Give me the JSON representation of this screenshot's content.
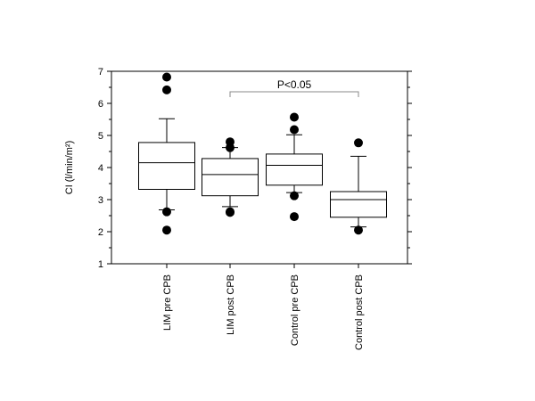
{
  "chart_data": {
    "type": "box",
    "ylabel": "CI (l/min/m²)",
    "ylim": [
      1,
      7
    ],
    "yticks": [
      1,
      2,
      3,
      4,
      5,
      6,
      7
    ],
    "grid": false,
    "categories": [
      "LIM pre CPB",
      "LIM post CPB",
      "Control pre CPB",
      "Control post CPB"
    ],
    "boxes": [
      {
        "category": "LIM pre CPB",
        "whisker_low": 2.68,
        "q1": 3.32,
        "median": 4.15,
        "q3": 4.78,
        "whisker_high": 5.52,
        "outliers": [
          6.82,
          6.42,
          2.62,
          2.05
        ]
      },
      {
        "category": "LIM post CPB",
        "whisker_low": 2.78,
        "q1": 3.12,
        "median": 3.78,
        "q3": 4.28,
        "whisker_high": 4.62,
        "outliers": [
          4.8,
          4.62,
          2.62,
          2.6
        ]
      },
      {
        "category": "Control pre CPB",
        "whisker_low": 3.22,
        "q1": 3.45,
        "median": 4.07,
        "q3": 4.42,
        "whisker_high": 5.02,
        "outliers": [
          5.57,
          5.18,
          3.12,
          2.47
        ]
      },
      {
        "category": "Control post CPB",
        "whisker_low": 2.15,
        "q1": 2.45,
        "median": 3.0,
        "q3": 3.25,
        "whisker_high": 4.35,
        "outliers": [
          4.77,
          2.05
        ]
      }
    ],
    "annotation": {
      "text": "P<0.05",
      "from_category": "LIM post CPB",
      "to_category": "Control post CPB"
    }
  }
}
